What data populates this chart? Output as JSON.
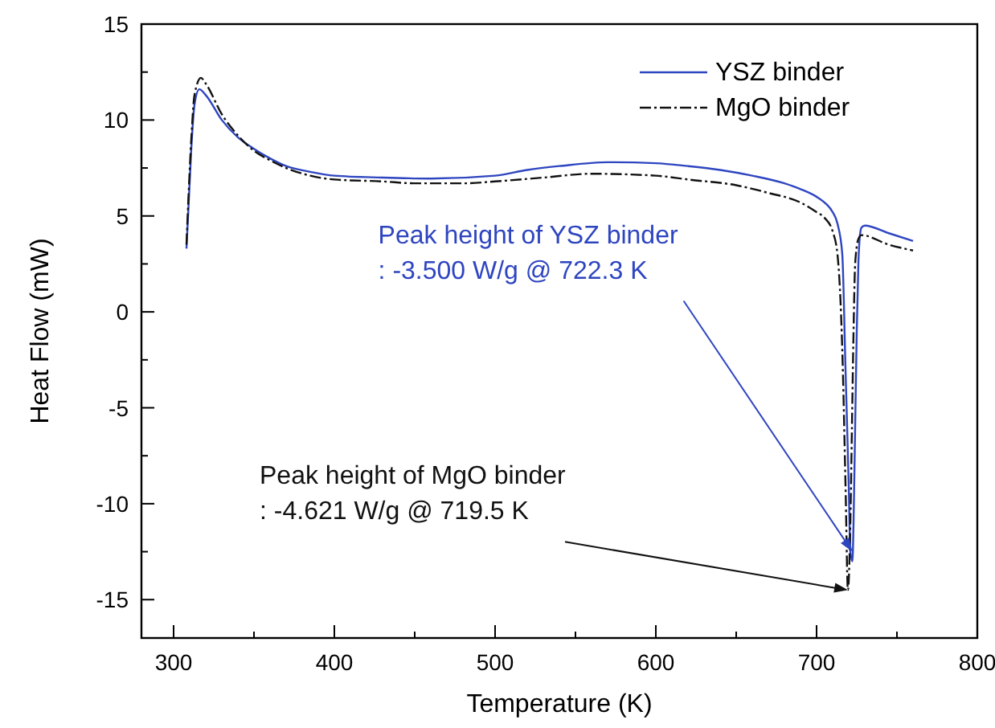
{
  "chart_data": {
    "type": "line",
    "xlabel": "Temperature (K)",
    "ylabel": "Heat Flow (mW)",
    "xlim": [
      280,
      800
    ],
    "xticks": [
      300,
      {
        "value": 350,
        "label": null
      },
      400,
      {
        "value": 450,
        "label": null
      },
      500,
      {
        "value": 550,
        "label": null
      },
      600,
      {
        "value": 650,
        "label": null
      },
      700,
      {
        "value": 750,
        "label": null
      },
      800
    ],
    "ylim": [
      -17,
      15
    ],
    "yticks": [
      -15,
      {
        "value": -12.5,
        "label": null
      },
      -10,
      {
        "value": -7.5,
        "label": null
      },
      -5,
      {
        "value": -2.5,
        "label": null
      },
      0,
      {
        "value": 2.5,
        "label": null
      },
      5,
      {
        "value": 7.5,
        "label": null
      },
      10,
      {
        "value": 12.5,
        "label": null
      },
      15
    ],
    "grid": false,
    "legend": "top right",
    "marker": "none",
    "series": [
      {
        "name": "YSZ binder",
        "color": "#2e45c0",
        "line_style": "solid",
        "x": [
          308,
          309,
          311,
          313,
          316,
          320,
          330,
          340,
          350,
          360,
          370,
          385,
          400,
          430,
          460,
          500,
          520,
          540,
          570,
          600,
          620,
          640,
          660,
          680,
          690,
          700,
          705,
          710,
          713,
          716,
          718,
          720,
          721,
          722.3,
          723,
          724,
          725,
          726,
          727,
          728,
          730,
          745,
          760
        ],
        "values": [
          3.3,
          5,
          8.5,
          10.8,
          11.6,
          11.3,
          10,
          9.1,
          8.5,
          8,
          7.6,
          7.3,
          7.1,
          7,
          6.95,
          7.1,
          7.4,
          7.6,
          7.8,
          7.75,
          7.6,
          7.4,
          7.1,
          6.7,
          6.4,
          6,
          5.7,
          5.2,
          4.6,
          3,
          -3,
          -9,
          -12.5,
          -13,
          -11,
          -6,
          -1,
          2.5,
          4,
          4.4,
          4.5,
          4.1,
          3.7
        ]
      },
      {
        "name": "MgO binder",
        "color": "#111111",
        "line_style": "dashed",
        "x": [
          308,
          309,
          311,
          313,
          317,
          320,
          330,
          340,
          350,
          360,
          370,
          385,
          400,
          430,
          450,
          480,
          500,
          530,
          560,
          600,
          620,
          650,
          670,
          690,
          700,
          705,
          710,
          713,
          716,
          718,
          719.5,
          721,
          722,
          723,
          724,
          726,
          728,
          745,
          760
        ],
        "values": [
          3.5,
          5.5,
          9,
          11.3,
          12.2,
          11.9,
          10.3,
          9.2,
          8.4,
          7.9,
          7.5,
          7.1,
          6.9,
          6.8,
          6.7,
          6.7,
          6.8,
          7,
          7.2,
          7.1,
          6.9,
          6.6,
          6.2,
          5.7,
          5.2,
          4.9,
          4.2,
          3,
          -2,
          -9,
          -14.5,
          -11,
          -6,
          -1,
          2.5,
          3.8,
          4,
          3.5,
          3.2
        ]
      }
    ],
    "annotations": [
      {
        "text": "Peak height of YSZ binder\n: -3.500 W/g @ 722.3 K",
        "x": 722.3,
        "y": -12.5
      },
      {
        "text": "Peak height of MgO binder\n: -4.621 W/g @ 719.5 K",
        "x": 719.5,
        "y": -14.5
      }
    ]
  }
}
